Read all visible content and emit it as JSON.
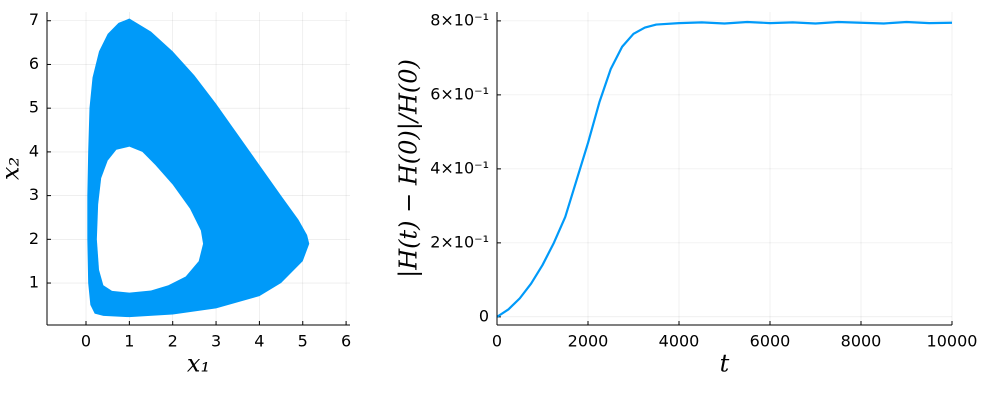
{
  "chart_data": [
    {
      "type": "region",
      "xlabel": "x₁",
      "ylabel": "x₂",
      "xlim": [
        -0.9,
        6.09
      ],
      "ylim": [
        0.04,
        7.2
      ],
      "xticks": [
        0,
        1,
        2,
        3,
        4,
        5,
        6
      ],
      "yticks": [
        1,
        2,
        3,
        4,
        5,
        6,
        7
      ],
      "grid": true,
      "series": [
        {
          "color": "#009af9",
          "x": [
            1.0,
            1.5,
            2.0,
            2.5,
            3.0,
            3.5,
            4.0,
            4.5,
            4.9,
            5.1,
            5.15,
            5.0,
            4.5,
            4.0,
            3.0,
            2.0,
            1.0,
            0.4,
            0.2,
            0.1,
            0.05,
            0.03,
            0.03,
            0.05,
            0.08,
            0.15,
            0.3,
            0.5,
            0.75
          ],
          "values": [
            7.05,
            6.75,
            6.3,
            5.75,
            5.1,
            4.4,
            3.7,
            3.0,
            2.45,
            2.1,
            1.9,
            1.5,
            1.0,
            0.7,
            0.42,
            0.28,
            0.22,
            0.25,
            0.3,
            0.5,
            1.0,
            2.0,
            3.0,
            4.0,
            5.0,
            5.7,
            6.3,
            6.7,
            6.95
          ]
        },
        {
          "color": "#ffffff",
          "x": [
            1.0,
            1.3,
            1.6,
            2.0,
            2.4,
            2.65,
            2.7,
            2.6,
            2.3,
            1.9,
            1.5,
            1.0,
            0.6,
            0.4,
            0.3,
            0.25,
            0.28,
            0.35,
            0.5,
            0.7
          ],
          "values": [
            4.12,
            4.0,
            3.7,
            3.25,
            2.7,
            2.2,
            1.9,
            1.5,
            1.15,
            0.95,
            0.83,
            0.78,
            0.82,
            0.95,
            1.3,
            2.0,
            2.8,
            3.4,
            3.8,
            4.05
          ]
        }
      ]
    },
    {
      "type": "line",
      "xlabel": "t",
      "ylabel": "|H(t) − H(0)|/H(0)",
      "xlim": [
        0,
        10000
      ],
      "ylim": [
        -0.022,
        0.824
      ],
      "xticks": [
        0,
        2000,
        4000,
        6000,
        8000,
        10000
      ],
      "yticks": [
        0,
        {
          "value": 0.2,
          "label": "2×10⁻¹"
        },
        {
          "value": 0.4,
          "label": "4×10⁻¹"
        },
        {
          "value": 0.6,
          "label": "6×10⁻¹"
        },
        {
          "value": 0.8,
          "label": "8×10⁻¹"
        }
      ],
      "grid": true,
      "series": [
        {
          "color": "#009af9",
          "x": [
            0,
            250,
            500,
            750,
            1000,
            1250,
            1500,
            1750,
            2000,
            2250,
            2500,
            2750,
            3000,
            3250,
            3500,
            4000,
            4500,
            5000,
            5500,
            6000,
            6500,
            7000,
            7500,
            8000,
            8500,
            9000,
            9500,
            10000
          ],
          "values": [
            0,
            0.02,
            0.05,
            0.09,
            0.14,
            0.2,
            0.27,
            0.37,
            0.47,
            0.58,
            0.67,
            0.73,
            0.765,
            0.782,
            0.79,
            0.794,
            0.796,
            0.793,
            0.797,
            0.794,
            0.796,
            0.793,
            0.797,
            0.795,
            0.793,
            0.797,
            0.794,
            0.795
          ]
        }
      ]
    }
  ]
}
